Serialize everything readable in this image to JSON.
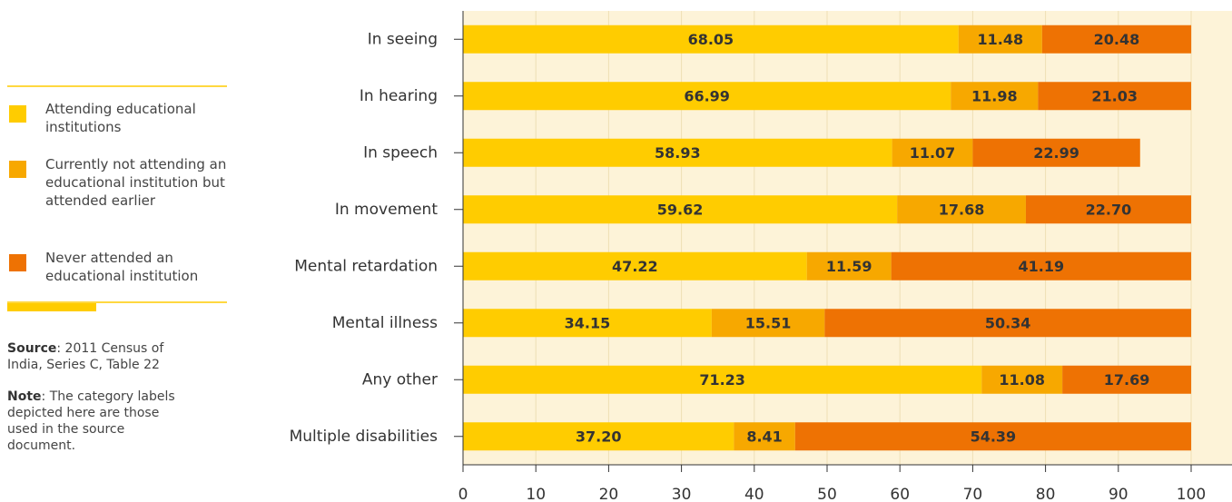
{
  "chart_data": {
    "type": "bar",
    "orientation": "horizontal",
    "stacked": true,
    "categories": [
      "In seeing",
      "In hearing",
      "In speech",
      "In movement",
      "Mental retardation",
      "Mental illness",
      "Any other",
      "Multiple disabilities"
    ],
    "series": [
      {
        "name": "Attending educational institutions",
        "color": "#ffcc00",
        "values": [
          68.05,
          66.99,
          58.93,
          59.62,
          47.22,
          34.15,
          71.23,
          37.2
        ],
        "value_labels": [
          "68.05",
          "66.99",
          "58.93",
          "59.62",
          "47.22",
          "34.15",
          "71.23",
          "37.20"
        ]
      },
      {
        "name": "Currently not attending an educational institution but attended earlier",
        "color": "#f7a800",
        "values": [
          11.48,
          11.98,
          11.07,
          17.68,
          11.59,
          15.51,
          11.08,
          8.41
        ],
        "value_labels": [
          "11.48",
          "11.98",
          "11.07",
          "17.68",
          "11.59",
          "15.51",
          "11.08",
          "8.41"
        ]
      },
      {
        "name": "Never attended an educational institution",
        "color": "#ee7203",
        "values": [
          20.48,
          21.03,
          22.99,
          22.7,
          41.19,
          50.34,
          17.69,
          54.39
        ],
        "value_labels": [
          "20.48",
          "21.03",
          "22.99",
          "22.70",
          "41.19",
          "50.34",
          "17.69",
          "54.39"
        ]
      }
    ],
    "xlim": [
      0,
      100
    ],
    "xticks": [
      0,
      10,
      20,
      30,
      40,
      50,
      60,
      70,
      80,
      90,
      100
    ],
    "grid": true
  },
  "source": {
    "label": "Source",
    "text": ": 2011 Census of India, Series C, Table 22"
  },
  "note": {
    "label": "Note",
    "text": ": The category labels depicted here are those used in the source document."
  }
}
